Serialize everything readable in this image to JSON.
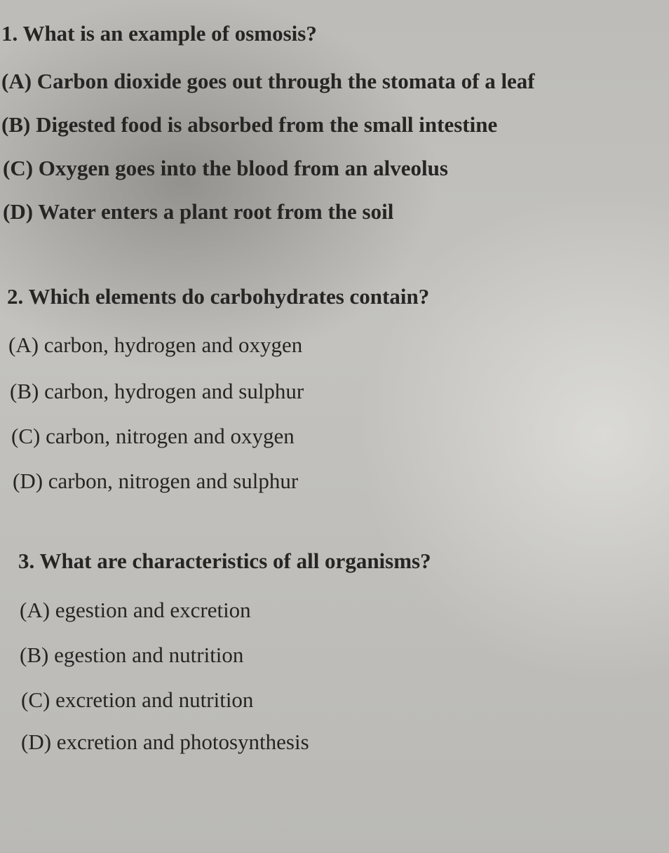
{
  "questions": [
    {
      "question": "1. What is an example of osmosis?",
      "options": [
        "(A) Carbon dioxide goes out through the stomata of a leaf",
        "(B) Digested food is absorbed from the small intestine",
        "(C) Oxygen goes into the blood from an alveolus",
        "(D) Water enters a plant root from the soil"
      ]
    },
    {
      "question": "2. Which elements do carbohydrates contain?",
      "options": [
        "(A) carbon, hydrogen and oxygen",
        "(B) carbon, hydrogen and sulphur",
        "(C) carbon, nitrogen and oxygen",
        "(D) carbon, nitrogen and sulphur"
      ]
    },
    {
      "question": "3. What are characteristics of all organisms?",
      "options": [
        "(A) egestion and excretion",
        "(B) egestion and nutrition",
        "(C) excretion and nutrition",
        "(D) excretion and photosynthesis"
      ]
    }
  ]
}
